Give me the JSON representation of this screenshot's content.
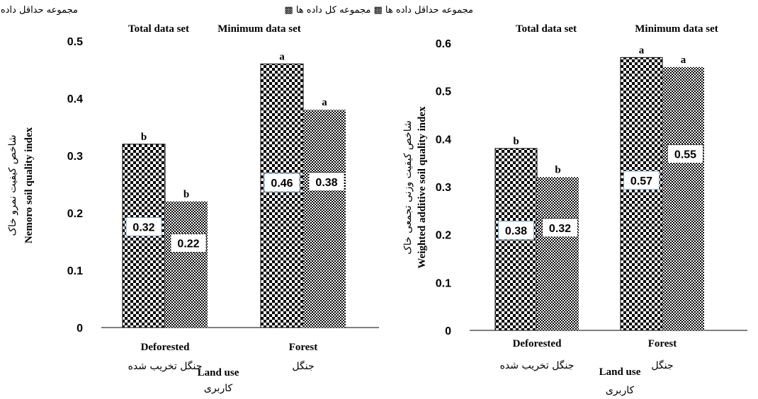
{
  "chart_data": [
    {
      "type": "bar",
      "categories": [
        {
          "en": "Deforested",
          "fa": "جنگل تخریب شده"
        },
        {
          "en": "Forest",
          "fa": "جنگل"
        }
      ],
      "series": [
        {
          "name": "Total data set",
          "values": [
            0.32,
            0.46
          ],
          "letters": [
            "b",
            "a"
          ],
          "pattern": "checker-large"
        },
        {
          "name": "Minimum data set",
          "values": [
            0.22,
            0.38
          ],
          "letters": [
            "b",
            "a"
          ],
          "pattern": "checker-small"
        }
      ],
      "legend_fa": "مجموعه حداقل داده ها ▩ مجموعه کل داده ها ▩",
      "legend_en": [
        "Total data set",
        "Minimum data set"
      ],
      "ylabel_en": "Nemoro soil quality index",
      "ylabel_fa": "شاخص کیفیت نمرو خاک",
      "xlabel_en": "Land use",
      "xlabel_fa": "کاربری",
      "ylim": [
        0,
        0.5
      ],
      "yticks": [
        "0",
        "0.1",
        "0.2",
        "0.3",
        "0.4",
        "0.5"
      ],
      "value_labels": [
        [
          "0.32",
          "0.46"
        ],
        [
          "0.22",
          "0.38"
        ]
      ]
    },
    {
      "type": "bar",
      "categories": [
        {
          "en": "Deforested",
          "fa": "جنگل تخریب شده"
        },
        {
          "en": "Forest",
          "fa": "جنگل"
        }
      ],
      "series": [
        {
          "name": "Total data set",
          "values": [
            0.38,
            0.57
          ],
          "letters": [
            "b",
            "a"
          ],
          "pattern": "checker-large"
        },
        {
          "name": "Minimum data set",
          "values": [
            0.32,
            0.55
          ],
          "letters": [
            "b",
            "a"
          ],
          "pattern": "checker-small"
        }
      ],
      "legend_fa": "مجموعه حداقل داده ها ▩ مجموعه کل داده ها ▩",
      "legend_en": [
        "Total data set",
        "Minimum data set"
      ],
      "ylabel_en": "Weighted additive soil quality index",
      "ylabel_fa": "شاخص کیفیت وزنی تجمعی خاک",
      "xlabel_en": "Land use",
      "xlabel_fa": "کاربری",
      "ylim": [
        0,
        0.6
      ],
      "yticks": [
        "0",
        "0.1",
        "0.2",
        "0.3",
        "0.4",
        "0.5",
        "0.6"
      ],
      "value_labels": [
        [
          "0.38",
          "0.57"
        ],
        [
          "0.32",
          "0.55"
        ]
      ]
    }
  ]
}
